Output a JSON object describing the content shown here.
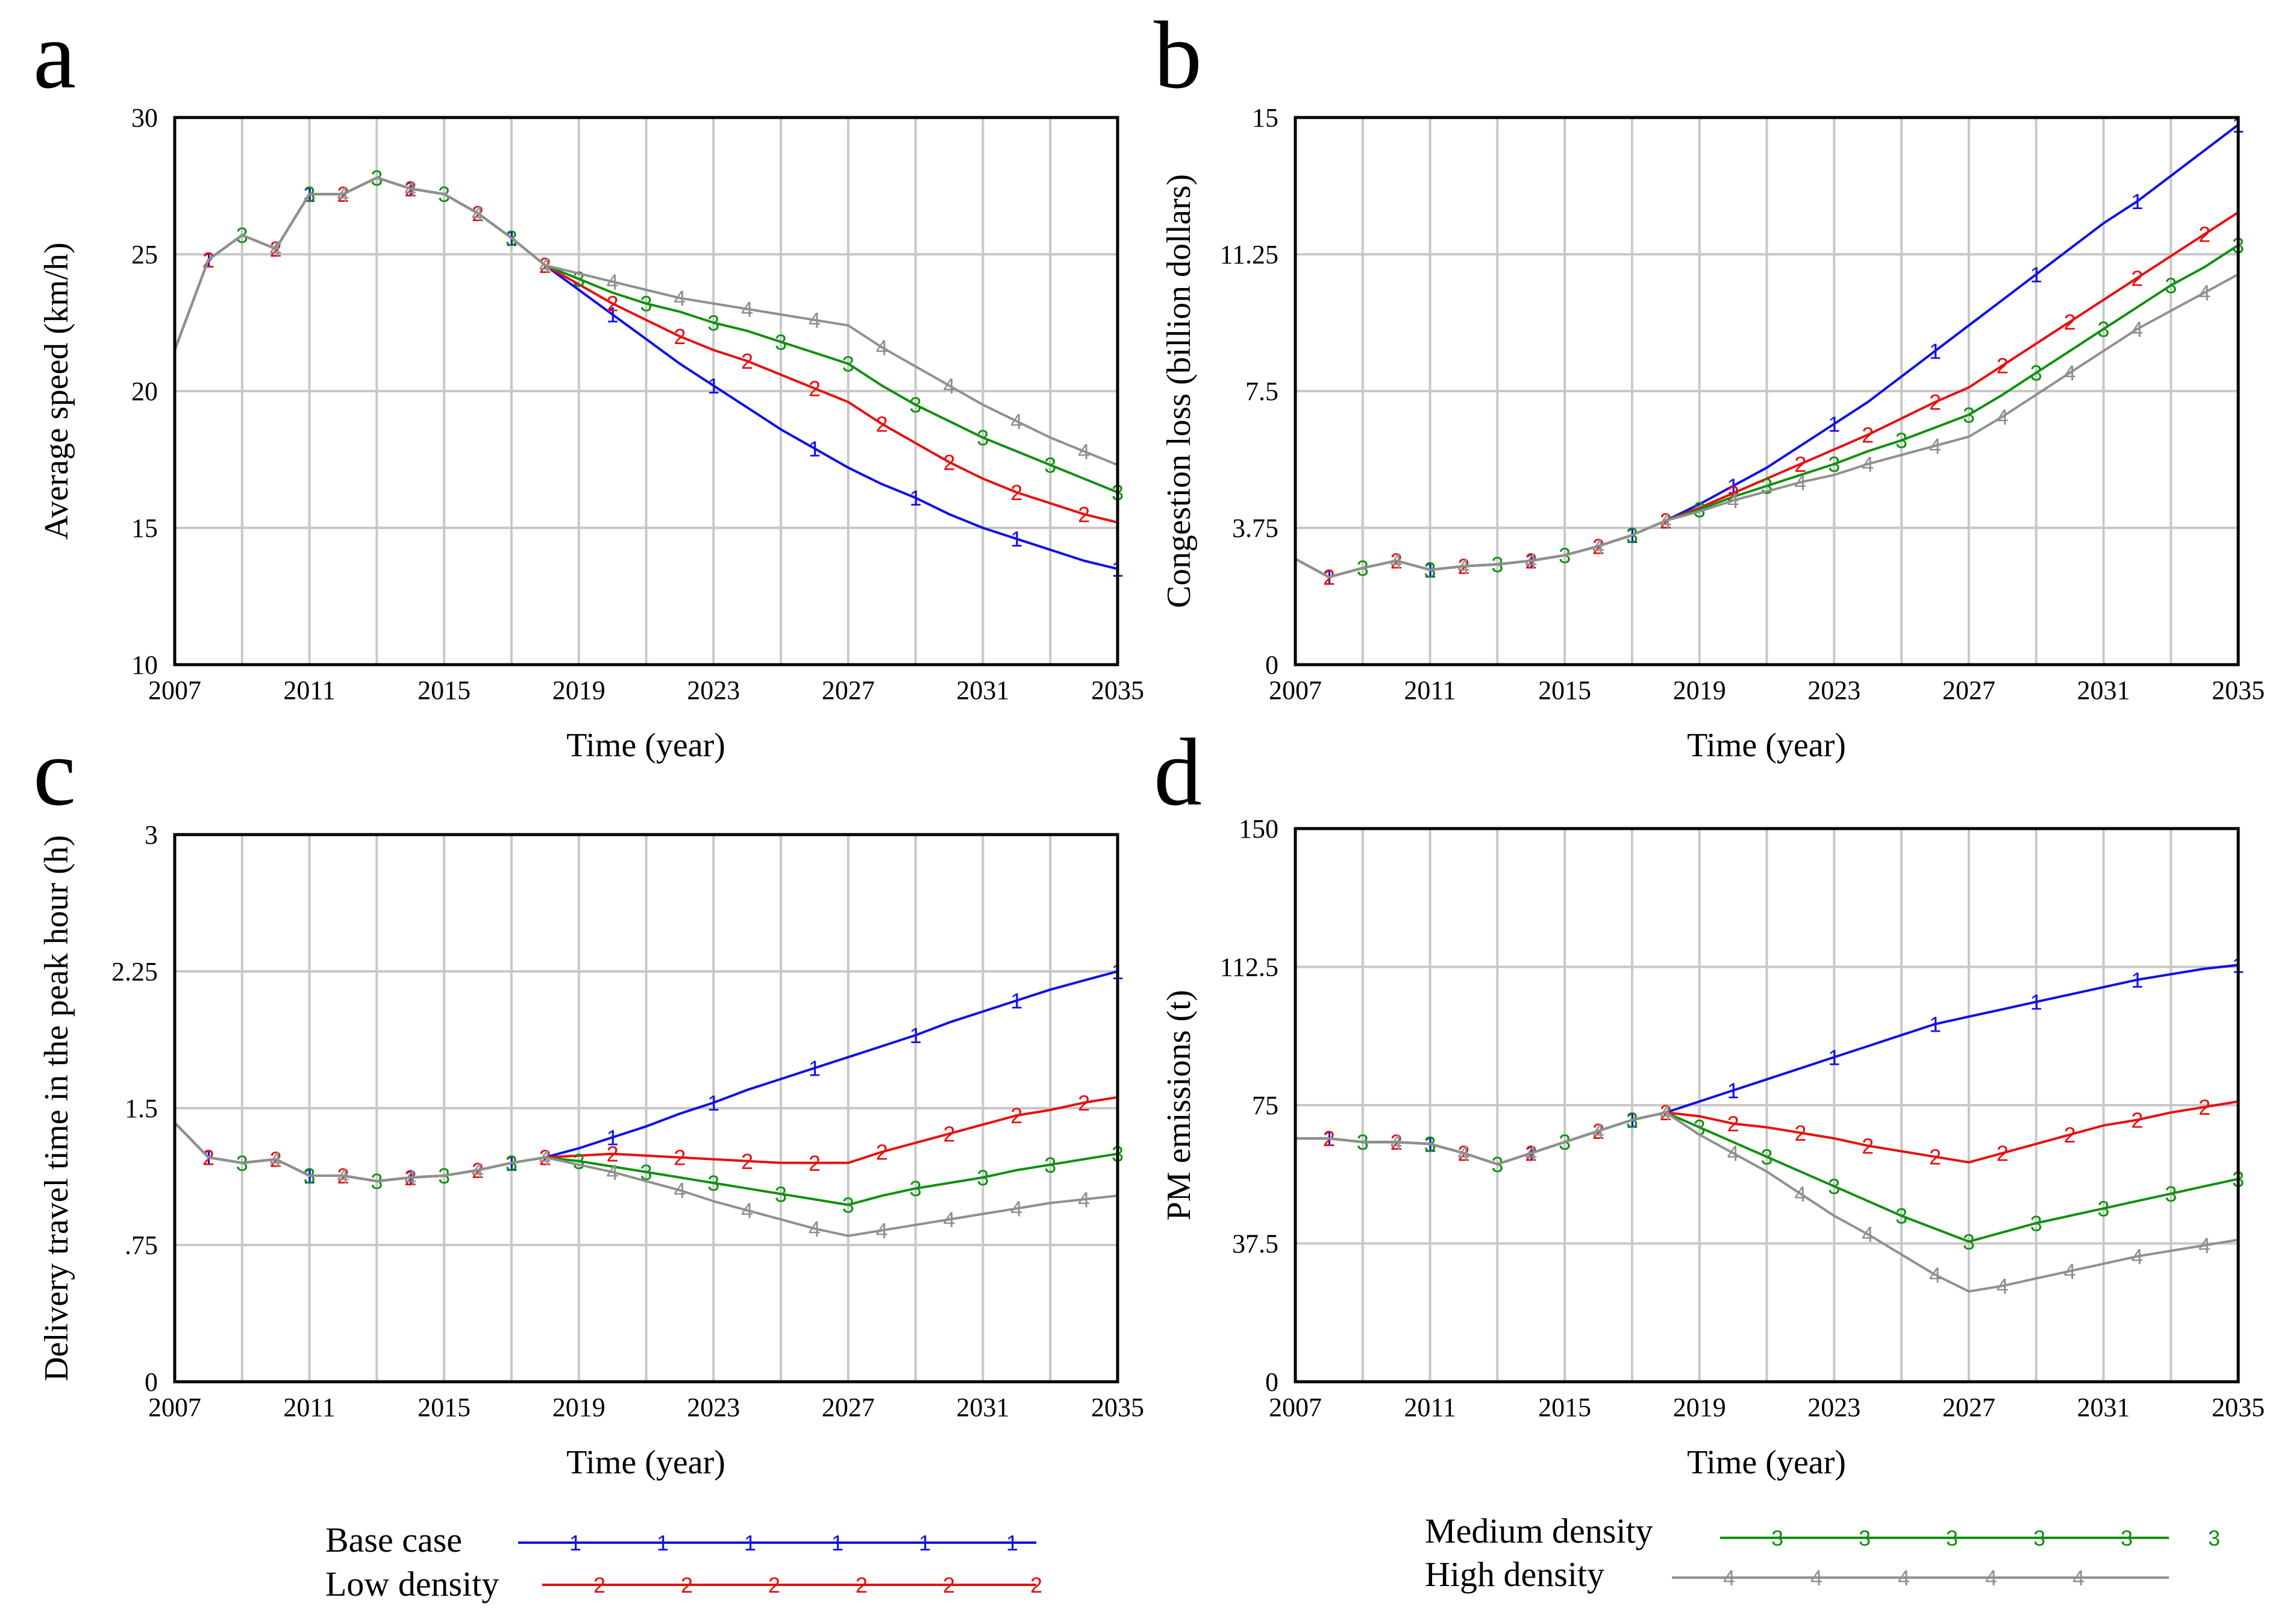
{
  "series_styles": [
    {
      "name": "Base case",
      "marker": "1",
      "color": "#1010e8"
    },
    {
      "name": "Low density",
      "marker": "2",
      "color": "#e81010"
    },
    {
      "name": "Medium density",
      "marker": "3",
      "color": "#109010"
    },
    {
      "name": "High density",
      "marker": "4",
      "color": "#909090"
    }
  ],
  "legend": {
    "items": [
      "Base case",
      "Low density",
      "Medium density",
      "High density"
    ]
  },
  "chart_data": [
    {
      "panel": "a",
      "type": "line",
      "xlabel": "Time (year)",
      "ylabel": "Average speed (km/h)",
      "xlim": [
        2007,
        2035
      ],
      "ylim": [
        10,
        30
      ],
      "xticks": [
        "2007",
        "2011",
        "2015",
        "2019",
        "2023",
        "2027",
        "2031",
        "2035"
      ],
      "yticks": [
        "10",
        "15",
        "20",
        "25",
        "30"
      ],
      "years": [
        2007,
        2008,
        2009,
        2010,
        2011,
        2012,
        2013,
        2014,
        2015,
        2016,
        2017,
        2018,
        2019,
        2020,
        2021,
        2022,
        2023,
        2024,
        2025,
        2026,
        2027,
        2028,
        2029,
        2030,
        2031,
        2032,
        2033,
        2034,
        2035
      ],
      "series": [
        {
          "name": "Base case",
          "values": [
            21.5,
            24.8,
            25.7,
            25.2,
            27.2,
            27.2,
            27.8,
            27.4,
            27.2,
            26.5,
            25.6,
            24.6,
            23.7,
            22.8,
            21.9,
            21.0,
            20.2,
            19.4,
            18.6,
            17.9,
            17.2,
            16.6,
            16.1,
            15.5,
            15.0,
            14.6,
            14.2,
            13.8,
            13.5
          ]
        },
        {
          "name": "Low density",
          "values": [
            21.5,
            24.8,
            25.7,
            25.2,
            27.2,
            27.2,
            27.8,
            27.4,
            27.2,
            26.5,
            25.6,
            24.6,
            23.9,
            23.2,
            22.6,
            22.0,
            21.5,
            21.1,
            20.6,
            20.1,
            19.6,
            18.8,
            18.1,
            17.4,
            16.8,
            16.3,
            15.9,
            15.5,
            15.2
          ]
        },
        {
          "name": "Medium density",
          "values": [
            21.5,
            24.8,
            25.7,
            25.2,
            27.2,
            27.2,
            27.8,
            27.4,
            27.2,
            26.5,
            25.6,
            24.6,
            24.1,
            23.6,
            23.2,
            22.9,
            22.5,
            22.2,
            21.8,
            21.4,
            21.0,
            20.2,
            19.5,
            18.9,
            18.3,
            17.8,
            17.3,
            16.8,
            16.3
          ]
        },
        {
          "name": "High density",
          "values": [
            21.5,
            24.8,
            25.7,
            25.2,
            27.2,
            27.2,
            27.8,
            27.4,
            27.2,
            26.5,
            25.6,
            24.6,
            24.3,
            24.0,
            23.7,
            23.4,
            23.2,
            23.0,
            22.8,
            22.6,
            22.4,
            21.6,
            20.9,
            20.2,
            19.5,
            18.9,
            18.3,
            17.8,
            17.3
          ]
        }
      ]
    },
    {
      "panel": "b",
      "type": "line",
      "xlabel": "Time (year)",
      "ylabel": "Congestion loss (billion dollars)",
      "xlim": [
        2007,
        2035
      ],
      "ylim": [
        0,
        15
      ],
      "xticks": [
        "2007",
        "2011",
        "2015",
        "2019",
        "2023",
        "2027",
        "2031",
        "2035"
      ],
      "yticks": [
        "0",
        "3.75",
        "7.5",
        "11.25",
        "15"
      ],
      "years": [
        2007,
        2008,
        2009,
        2010,
        2011,
        2012,
        2013,
        2014,
        2015,
        2016,
        2017,
        2018,
        2019,
        2020,
        2021,
        2022,
        2023,
        2024,
        2025,
        2026,
        2027,
        2028,
        2029,
        2030,
        2031,
        2032,
        2033,
        2034,
        2035
      ],
      "series": [
        {
          "name": "Base case",
          "values": [
            2.9,
            2.4,
            2.65,
            2.85,
            2.6,
            2.7,
            2.75,
            2.85,
            3.0,
            3.25,
            3.55,
            3.95,
            4.4,
            4.9,
            5.4,
            6.0,
            6.6,
            7.2,
            7.9,
            8.6,
            9.3,
            10.0,
            10.7,
            11.4,
            12.1,
            12.7,
            13.4,
            14.1,
            14.8
          ]
        },
        {
          "name": "Low density",
          "values": [
            2.9,
            2.4,
            2.65,
            2.85,
            2.6,
            2.7,
            2.75,
            2.85,
            3.0,
            3.25,
            3.55,
            3.95,
            4.3,
            4.7,
            5.1,
            5.5,
            5.9,
            6.3,
            6.75,
            7.2,
            7.6,
            8.2,
            8.8,
            9.4,
            10.0,
            10.6,
            11.2,
            11.8,
            12.4
          ]
        },
        {
          "name": "Medium density",
          "values": [
            2.9,
            2.4,
            2.65,
            2.85,
            2.6,
            2.7,
            2.75,
            2.85,
            3.0,
            3.25,
            3.55,
            3.95,
            4.25,
            4.6,
            4.9,
            5.2,
            5.5,
            5.85,
            6.15,
            6.5,
            6.85,
            7.4,
            8.0,
            8.6,
            9.2,
            9.8,
            10.4,
            10.9,
            11.5
          ]
        },
        {
          "name": "High density",
          "values": [
            2.9,
            2.4,
            2.65,
            2.85,
            2.6,
            2.7,
            2.75,
            2.85,
            3.0,
            3.25,
            3.55,
            3.95,
            4.2,
            4.5,
            4.75,
            5.0,
            5.2,
            5.5,
            5.75,
            6.0,
            6.25,
            6.8,
            7.4,
            8.0,
            8.6,
            9.2,
            9.7,
            10.2,
            10.7
          ]
        }
      ]
    },
    {
      "panel": "c",
      "type": "line",
      "xlabel": "Time (year)",
      "ylabel": "Delivery travel time in the peak hour (h)",
      "xlim": [
        2007,
        2035
      ],
      "ylim": [
        0,
        3
      ],
      "xticks": [
        "2007",
        "2011",
        "2015",
        "2019",
        "2023",
        "2027",
        "2031",
        "2035"
      ],
      "yticks": [
        "0",
        ".75",
        "1.5",
        "2.25",
        "3"
      ],
      "years": [
        2007,
        2008,
        2009,
        2010,
        2011,
        2012,
        2013,
        2014,
        2015,
        2016,
        2017,
        2018,
        2019,
        2020,
        2021,
        2022,
        2023,
        2024,
        2025,
        2026,
        2027,
        2028,
        2029,
        2030,
        2031,
        2032,
        2033,
        2034,
        2035
      ],
      "series": [
        {
          "name": "Base case",
          "values": [
            1.42,
            1.23,
            1.2,
            1.22,
            1.13,
            1.13,
            1.1,
            1.12,
            1.13,
            1.16,
            1.2,
            1.23,
            1.28,
            1.34,
            1.4,
            1.47,
            1.53,
            1.6,
            1.66,
            1.72,
            1.78,
            1.84,
            1.9,
            1.97,
            2.03,
            2.09,
            2.15,
            2.2,
            2.25
          ]
        },
        {
          "name": "Low density",
          "values": [
            1.42,
            1.23,
            1.2,
            1.22,
            1.13,
            1.13,
            1.1,
            1.12,
            1.13,
            1.16,
            1.2,
            1.23,
            1.24,
            1.25,
            1.24,
            1.23,
            1.22,
            1.21,
            1.2,
            1.2,
            1.2,
            1.26,
            1.31,
            1.36,
            1.41,
            1.46,
            1.49,
            1.53,
            1.56
          ]
        },
        {
          "name": "Medium density",
          "values": [
            1.42,
            1.23,
            1.2,
            1.22,
            1.13,
            1.13,
            1.1,
            1.12,
            1.13,
            1.16,
            1.2,
            1.23,
            1.21,
            1.18,
            1.15,
            1.12,
            1.09,
            1.06,
            1.03,
            1.0,
            0.97,
            1.02,
            1.06,
            1.09,
            1.12,
            1.16,
            1.19,
            1.22,
            1.25
          ]
        },
        {
          "name": "High density",
          "values": [
            1.42,
            1.23,
            1.2,
            1.22,
            1.13,
            1.13,
            1.1,
            1.12,
            1.13,
            1.16,
            1.2,
            1.23,
            1.19,
            1.15,
            1.1,
            1.05,
            0.99,
            0.94,
            0.89,
            0.84,
            0.8,
            0.83,
            0.86,
            0.89,
            0.92,
            0.95,
            0.98,
            1.0,
            1.02
          ]
        }
      ]
    },
    {
      "panel": "d",
      "type": "line",
      "xlabel": "Time (year)",
      "ylabel": "PM emissions (t)",
      "xlim": [
        2007,
        2035
      ],
      "ylim": [
        0,
        150
      ],
      "xticks": [
        "2007",
        "2011",
        "2015",
        "2019",
        "2023",
        "2027",
        "2031",
        "2035"
      ],
      "yticks": [
        "0",
        "37.5",
        "75",
        "112.5",
        "150"
      ],
      "years": [
        2007,
        2008,
        2009,
        2010,
        2011,
        2012,
        2013,
        2014,
        2015,
        2016,
        2017,
        2018,
        2019,
        2020,
        2021,
        2022,
        2023,
        2024,
        2025,
        2026,
        2027,
        2028,
        2029,
        2030,
        2031,
        2032,
        2033,
        2034,
        2035
      ],
      "series": [
        {
          "name": "Base case",
          "values": [
            66,
            66,
            65,
            65,
            64.5,
            62,
            59,
            62,
            65,
            68,
            71,
            73,
            76,
            79,
            82,
            85,
            88,
            91,
            94,
            97,
            99,
            101,
            103,
            105,
            107,
            109,
            110.5,
            112,
            113
          ]
        },
        {
          "name": "Low density",
          "values": [
            66,
            66,
            65,
            65,
            64.5,
            62,
            59,
            62,
            65,
            68,
            71,
            73,
            72,
            70,
            69,
            67.5,
            66,
            64,
            62.5,
            61,
            59.5,
            62,
            64.5,
            67,
            69.5,
            71,
            73,
            74.5,
            76
          ]
        },
        {
          "name": "Medium density",
          "values": [
            66,
            66,
            65,
            65,
            64.5,
            62,
            59,
            62,
            65,
            68,
            71,
            73,
            69,
            65,
            61,
            57,
            53,
            49,
            45,
            41.5,
            38,
            40.5,
            43,
            45,
            47,
            49,
            51,
            53,
            55
          ]
        },
        {
          "name": "High density",
          "values": [
            66,
            66,
            65,
            65,
            64.5,
            62,
            59,
            62,
            65,
            68,
            71,
            73,
            67,
            62,
            57,
            51,
            45,
            40,
            34.5,
            29,
            24.5,
            26,
            28,
            30,
            32,
            34,
            35.5,
            37,
            38.5
          ]
        }
      ]
    }
  ]
}
